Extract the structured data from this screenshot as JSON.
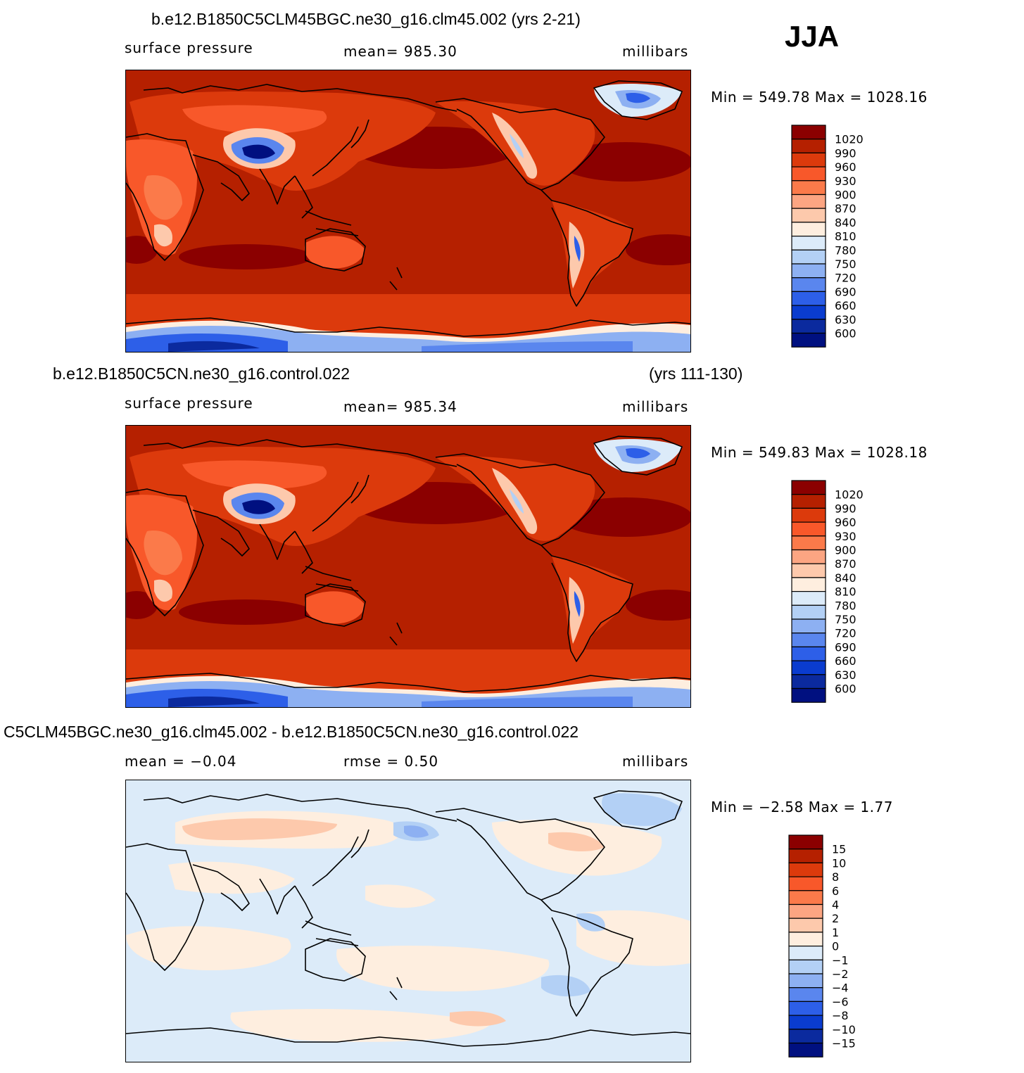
{
  "season": "JJA",
  "panels": [
    {
      "title_left": "b.e12.B1850C5CLM45BGC.ne30_g16.clm45.002 (yrs 2-21)",
      "title_right": "",
      "left": "surface pressure",
      "center": "mean= 985.30",
      "right": "millibars",
      "minmax": "Min = 549.78 Max = 1028.16"
    },
    {
      "title_left": "b.e12.B1850C5CN.ne30_g16.control.022",
      "title_right": "(yrs 111-130)",
      "left": "surface pressure",
      "center": "mean= 985.34",
      "right": "millibars",
      "minmax": "Min = 549.83 Max = 1028.18"
    },
    {
      "title_left": "C5CLM45BGC.ne30_g16.clm45.002 - b.e12.B1850C5CN.ne30_g16.control.022",
      "title_right": "",
      "left": "mean = −0.04",
      "center": "rmse = 0.50",
      "right": "millibars",
      "minmax": "Min = −2.58 Max = 1.77"
    }
  ],
  "chart_data": [
    {
      "type": "heatmap",
      "title": "b.e12.B1850C5CLM45BGC.ne30_g16.clm45.002 (yrs 2-21)",
      "variable": "surface pressure",
      "units": "millibars",
      "mean": 985.3,
      "min": 549.78,
      "max": 1028.16,
      "colorbar_levels": [
        "1020",
        "990",
        "960",
        "930",
        "900",
        "870",
        "840",
        "810",
        "780",
        "750",
        "720",
        "690",
        "660",
        "630",
        "600"
      ],
      "colors": [
        "#8b0000",
        "#b52000",
        "#dc3a0c",
        "#f8582a",
        "#fb7a4a",
        "#fca582",
        "#fdc9ac",
        "#feeedf",
        "#dcebf9",
        "#b3d0f5",
        "#8db0f2",
        "#5a86ee",
        "#2d5fe8",
        "#0a3ccf",
        "#0b2a9e",
        "#001080"
      ]
    },
    {
      "type": "heatmap",
      "title": "b.e12.B1850C5CN.ne30_g16.control.022 (yrs 111-130)",
      "variable": "surface pressure",
      "units": "millibars",
      "mean": 985.34,
      "min": 549.83,
      "max": 1028.18,
      "colorbar_levels": [
        "1020",
        "990",
        "960",
        "930",
        "900",
        "870",
        "840",
        "810",
        "780",
        "750",
        "720",
        "690",
        "660",
        "630",
        "600"
      ],
      "colors": [
        "#8b0000",
        "#b52000",
        "#dc3a0c",
        "#f8582a",
        "#fb7a4a",
        "#fca582",
        "#fdc9ac",
        "#feeedf",
        "#dcebf9",
        "#b3d0f5",
        "#8db0f2",
        "#5a86ee",
        "#2d5fe8",
        "#0a3ccf",
        "#0b2a9e",
        "#001080"
      ]
    },
    {
      "type": "heatmap",
      "title": "C5CLM45BGC.ne30_g16.clm45.002 - b.e12.B1850C5CN.ne30_g16.control.022",
      "units": "millibars",
      "mean": -0.04,
      "rmse": 0.5,
      "min": -2.58,
      "max": 1.77,
      "colorbar_levels": [
        "15",
        "10",
        "8",
        "6",
        "4",
        "2",
        "1",
        "0",
        "−1",
        "−2",
        "−4",
        "−6",
        "−8",
        "−10",
        "−15"
      ],
      "colors": [
        "#8b0000",
        "#b52000",
        "#dc3a0c",
        "#f8582a",
        "#fb7a4a",
        "#fca582",
        "#fdc9ac",
        "#feeedf",
        "#dcebf9",
        "#b3d0f5",
        "#8db0f2",
        "#5a86ee",
        "#2d5fe8",
        "#0a3ccf",
        "#0b2a9e",
        "#001080"
      ]
    }
  ]
}
